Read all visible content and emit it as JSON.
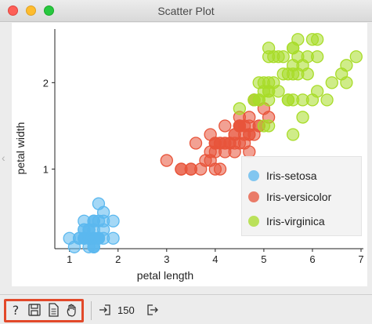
{
  "window": {
    "title": "Scatter Plot"
  },
  "chart_data": {
    "type": "scatter",
    "xlabel": "petal length",
    "ylabel": "petal width",
    "xlim": [
      0.85,
      7.0
    ],
    "ylim": [
      0.08,
      2.62
    ],
    "xticks": [
      1,
      2,
      3,
      4,
      5,
      6,
      7
    ],
    "yticks": [
      1,
      2
    ],
    "grid": false,
    "legend_position": "bottom-right",
    "series": [
      {
        "name": "Iris-setosa",
        "color": "#5bb8ef",
        "points": [
          [
            1.4,
            0.2
          ],
          [
            1.4,
            0.2
          ],
          [
            1.3,
            0.2
          ],
          [
            1.5,
            0.2
          ],
          [
            1.4,
            0.2
          ],
          [
            1.7,
            0.4
          ],
          [
            1.4,
            0.3
          ],
          [
            1.5,
            0.2
          ],
          [
            1.4,
            0.2
          ],
          [
            1.5,
            0.1
          ],
          [
            1.5,
            0.2
          ],
          [
            1.6,
            0.2
          ],
          [
            1.4,
            0.1
          ],
          [
            1.1,
            0.1
          ],
          [
            1.2,
            0.2
          ],
          [
            1.5,
            0.4
          ],
          [
            1.3,
            0.4
          ],
          [
            1.4,
            0.3
          ],
          [
            1.7,
            0.3
          ],
          [
            1.5,
            0.3
          ],
          [
            1.7,
            0.2
          ],
          [
            1.5,
            0.4
          ],
          [
            1.0,
            0.2
          ],
          [
            1.7,
            0.5
          ],
          [
            1.9,
            0.2
          ],
          [
            1.6,
            0.2
          ],
          [
            1.6,
            0.4
          ],
          [
            1.5,
            0.2
          ],
          [
            1.4,
            0.2
          ],
          [
            1.6,
            0.2
          ],
          [
            1.6,
            0.2
          ],
          [
            1.5,
            0.4
          ],
          [
            1.5,
            0.1
          ],
          [
            1.4,
            0.2
          ],
          [
            1.5,
            0.1
          ],
          [
            1.2,
            0.2
          ],
          [
            1.3,
            0.2
          ],
          [
            1.5,
            0.1
          ],
          [
            1.3,
            0.2
          ],
          [
            1.5,
            0.2
          ],
          [
            1.3,
            0.3
          ],
          [
            1.3,
            0.3
          ],
          [
            1.3,
            0.2
          ],
          [
            1.6,
            0.6
          ],
          [
            1.9,
            0.4
          ],
          [
            1.4,
            0.3
          ],
          [
            1.6,
            0.2
          ],
          [
            1.4,
            0.2
          ],
          [
            1.5,
            0.2
          ],
          [
            1.4,
            0.2
          ]
        ]
      },
      {
        "name": "Iris-versicolor",
        "color": "#e8543a",
        "points": [
          [
            4.7,
            1.4
          ],
          [
            4.5,
            1.5
          ],
          [
            4.9,
            1.5
          ],
          [
            4.0,
            1.3
          ],
          [
            4.6,
            1.5
          ],
          [
            4.5,
            1.3
          ],
          [
            4.7,
            1.6
          ],
          [
            3.3,
            1.0
          ],
          [
            4.6,
            1.3
          ],
          [
            3.9,
            1.4
          ],
          [
            3.5,
            1.0
          ],
          [
            4.2,
            1.5
          ],
          [
            4.0,
            1.0
          ],
          [
            4.7,
            1.4
          ],
          [
            3.6,
            1.3
          ],
          [
            4.4,
            1.4
          ],
          [
            4.5,
            1.5
          ],
          [
            4.1,
            1.0
          ],
          [
            4.5,
            1.5
          ],
          [
            3.9,
            1.1
          ],
          [
            4.8,
            1.8
          ],
          [
            4.0,
            1.3
          ],
          [
            4.9,
            1.5
          ],
          [
            4.7,
            1.2
          ],
          [
            4.3,
            1.3
          ],
          [
            4.4,
            1.4
          ],
          [
            4.8,
            1.4
          ],
          [
            5.0,
            1.7
          ],
          [
            4.5,
            1.5
          ],
          [
            3.5,
            1.0
          ],
          [
            3.8,
            1.1
          ],
          [
            3.7,
            1.0
          ],
          [
            3.9,
            1.2
          ],
          [
            5.1,
            1.6
          ],
          [
            4.5,
            1.5
          ],
          [
            4.5,
            1.6
          ],
          [
            4.7,
            1.5
          ],
          [
            4.4,
            1.3
          ],
          [
            4.1,
            1.3
          ],
          [
            4.0,
            1.3
          ],
          [
            4.4,
            1.2
          ],
          [
            4.6,
            1.4
          ],
          [
            4.0,
            1.2
          ],
          [
            3.3,
            1.0
          ],
          [
            4.2,
            1.3
          ],
          [
            4.2,
            1.2
          ],
          [
            4.2,
            1.3
          ],
          [
            4.3,
            1.3
          ],
          [
            3.0,
            1.1
          ],
          [
            4.1,
            1.3
          ]
        ]
      },
      {
        "name": "Iris-virginica",
        "color": "#a8dc28",
        "points": [
          [
            6.0,
            2.5
          ],
          [
            5.1,
            1.9
          ],
          [
            5.9,
            2.1
          ],
          [
            5.6,
            1.8
          ],
          [
            5.8,
            2.2
          ],
          [
            6.6,
            2.1
          ],
          [
            4.5,
            1.7
          ],
          [
            6.3,
            1.8
          ],
          [
            5.8,
            1.8
          ],
          [
            6.1,
            2.5
          ],
          [
            5.1,
            2.0
          ],
          [
            5.3,
            1.9
          ],
          [
            5.5,
            2.1
          ],
          [
            5.0,
            2.0
          ],
          [
            5.1,
            2.4
          ],
          [
            5.3,
            2.3
          ],
          [
            5.5,
            1.8
          ],
          [
            6.7,
            2.2
          ],
          [
            6.9,
            2.3
          ],
          [
            5.0,
            1.5
          ],
          [
            5.7,
            2.3
          ],
          [
            4.9,
            2.0
          ],
          [
            6.7,
            2.0
          ],
          [
            4.9,
            1.8
          ],
          [
            5.7,
            2.1
          ],
          [
            6.0,
            1.8
          ],
          [
            4.8,
            1.8
          ],
          [
            4.9,
            1.8
          ],
          [
            5.6,
            2.1
          ],
          [
            5.8,
            1.6
          ],
          [
            6.1,
            1.9
          ],
          [
            6.4,
            2.0
          ],
          [
            5.6,
            2.2
          ],
          [
            5.1,
            1.5
          ],
          [
            5.6,
            1.4
          ],
          [
            6.1,
            2.3
          ],
          [
            5.6,
            2.4
          ],
          [
            5.5,
            1.8
          ],
          [
            4.8,
            1.8
          ],
          [
            5.4,
            2.1
          ],
          [
            5.6,
            2.4
          ],
          [
            5.1,
            2.3
          ],
          [
            5.1,
            1.9
          ],
          [
            5.9,
            2.3
          ],
          [
            5.7,
            2.5
          ],
          [
            5.2,
            2.3
          ],
          [
            5.0,
            1.9
          ],
          [
            5.2,
            2.0
          ],
          [
            5.4,
            2.3
          ],
          [
            5.1,
            1.8
          ]
        ]
      }
    ]
  },
  "statusbar": {
    "help_icon": "question-icon",
    "save_icon": "save-icon",
    "report_icon": "report-icon",
    "interact_icon": "hand-icon",
    "input_icon": "input-icon",
    "output_icon": "output-icon",
    "input_count": "150"
  }
}
